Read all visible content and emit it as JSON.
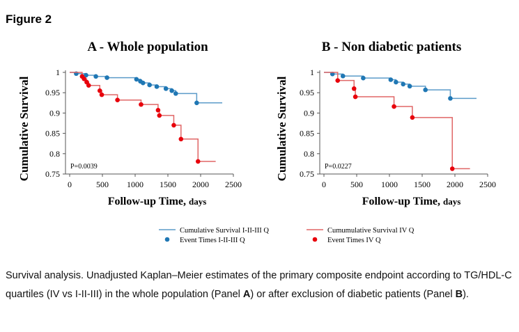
{
  "figure": {
    "heading": "Figure 2",
    "caption_parts": [
      {
        "text": "Survival analysis. Unadjusted Kaplan–Meier estimates of the primary composite endpoint according to TG/HDL-C quartiles (IV vs I-II-III) in the whole population (Panel ",
        "bold": false
      },
      {
        "text": "A",
        "bold": true
      },
      {
        "text": ") or after exclusion of diabetic patients (Panel ",
        "bold": false
      },
      {
        "text": "B",
        "bold": true
      },
      {
        "text": ").",
        "bold": false
      }
    ]
  },
  "legend": {
    "items": [
      {
        "id": "q123-line",
        "label": "Cumulative Survival I-II-III Q",
        "kind": "line",
        "color": "#5b9bc9"
      },
      {
        "id": "q4-line",
        "label": "Cumumulative Survival IV Q",
        "kind": "line",
        "color": "#e06666"
      },
      {
        "id": "q123-dot",
        "label": "Event Times I-II-III Q",
        "kind": "dot",
        "color": "#1f77b4"
      },
      {
        "id": "q4-dot",
        "label": "Event Times IV Q",
        "kind": "dot",
        "color": "#e8000b"
      }
    ]
  },
  "chart_data": [
    {
      "type": "line",
      "subtype": "kaplan-meier-step",
      "panel": "A",
      "title": "A - Whole population",
      "xlabel": "Follow-up Time,",
      "xlabel_unit": "days",
      "ylabel": "Cumulative Survival",
      "xlim": [
        0,
        2500
      ],
      "ylim": [
        0.75,
        1.0
      ],
      "xticks": [
        0,
        500,
        1000,
        1500,
        2000,
        2500
      ],
      "yticks": [
        0.75,
        0.8,
        0.85,
        0.9,
        0.95,
        1
      ],
      "ytick_labels": [
        "0.75",
        "0.8",
        "0.85",
        "0.9",
        "0.95",
        "1"
      ],
      "annotation": "P=0.0039",
      "series": [
        {
          "name": "Cumulative Survival I-II-III Q",
          "color": "#5b9bc9",
          "dot_color": "#1f77b4",
          "steps": [
            [
              0,
              1.0
            ],
            [
              100,
              0.997
            ],
            [
              250,
              0.993
            ],
            [
              400,
              0.99
            ],
            [
              570,
              0.987
            ],
            [
              1020,
              0.983
            ],
            [
              1080,
              0.978
            ],
            [
              1120,
              0.974
            ],
            [
              1220,
              0.969
            ],
            [
              1330,
              0.965
            ],
            [
              1470,
              0.96
            ],
            [
              1560,
              0.955
            ],
            [
              1620,
              0.948
            ],
            [
              1940,
              0.925
            ]
          ],
          "end_x": 2330,
          "events": [
            [
              100,
              0.997
            ],
            [
              250,
              0.993
            ],
            [
              400,
              0.99
            ],
            [
              570,
              0.987
            ],
            [
              1020,
              0.983
            ],
            [
              1080,
              0.978
            ],
            [
              1120,
              0.974
            ],
            [
              1220,
              0.969
            ],
            [
              1330,
              0.965
            ],
            [
              1470,
              0.96
            ],
            [
              1560,
              0.955
            ],
            [
              1620,
              0.948
            ],
            [
              1940,
              0.925
            ]
          ]
        },
        {
          "name": "Cumumulative Survival IV Q",
          "color": "#e06666",
          "dot_color": "#e8000b",
          "steps": [
            [
              0,
              1.0
            ],
            [
              190,
              0.99
            ],
            [
              220,
              0.984
            ],
            [
              260,
              0.976
            ],
            [
              290,
              0.968
            ],
            [
              460,
              0.955
            ],
            [
              490,
              0.945
            ],
            [
              730,
              0.932
            ],
            [
              1090,
              0.921
            ],
            [
              1350,
              0.907
            ],
            [
              1370,
              0.894
            ],
            [
              1590,
              0.87
            ],
            [
              1700,
              0.836
            ],
            [
              1960,
              0.781
            ]
          ],
          "end_x": 2230,
          "events": [
            [
              190,
              0.99
            ],
            [
              220,
              0.984
            ],
            [
              260,
              0.976
            ],
            [
              290,
              0.968
            ],
            [
              460,
              0.955
            ],
            [
              490,
              0.945
            ],
            [
              730,
              0.932
            ],
            [
              1090,
              0.921
            ],
            [
              1350,
              0.907
            ],
            [
              1370,
              0.894
            ],
            [
              1590,
              0.87
            ],
            [
              1700,
              0.836
            ],
            [
              1960,
              0.781
            ]
          ]
        }
      ]
    },
    {
      "type": "line",
      "subtype": "kaplan-meier-step",
      "panel": "B",
      "title": "B - Non diabetic patients",
      "xlabel": "Follow-up Time,",
      "xlabel_unit": "days",
      "ylabel": "Cumulative Survival",
      "xlim": [
        0,
        2500
      ],
      "ylim": [
        0.75,
        1.0
      ],
      "xticks": [
        0,
        500,
        1000,
        1500,
        2000,
        2500
      ],
      "yticks": [
        0.75,
        0.8,
        0.85,
        0.9,
        0.95,
        1
      ],
      "ytick_labels": [
        "0.75",
        "0.8",
        "0.85",
        "0.9",
        "0.95",
        "1"
      ],
      "annotation": "P=0.0227",
      "series": [
        {
          "name": "Cumulative Survival I-II-III Q",
          "color": "#5b9bc9",
          "dot_color": "#1f77b4",
          "steps": [
            [
              0,
              1.0
            ],
            [
              130,
              0.996
            ],
            [
              290,
              0.991
            ],
            [
              600,
              0.986
            ],
            [
              1020,
              0.982
            ],
            [
              1100,
              0.976
            ],
            [
              1210,
              0.971
            ],
            [
              1310,
              0.966
            ],
            [
              1550,
              0.957
            ],
            [
              1930,
              0.936
            ]
          ],
          "end_x": 2330,
          "events": [
            [
              130,
              0.996
            ],
            [
              290,
              0.991
            ],
            [
              600,
              0.986
            ],
            [
              1020,
              0.982
            ],
            [
              1100,
              0.976
            ],
            [
              1210,
              0.971
            ],
            [
              1310,
              0.966
            ],
            [
              1550,
              0.957
            ],
            [
              1930,
              0.936
            ]
          ]
        },
        {
          "name": "Cumumulative Survival IV Q",
          "color": "#e06666",
          "dot_color": "#e8000b",
          "steps": [
            [
              0,
              1.0
            ],
            [
              210,
              0.98
            ],
            [
              460,
              0.96
            ],
            [
              480,
              0.94
            ],
            [
              1070,
              0.916
            ],
            [
              1350,
              0.889
            ],
            [
              1960,
              0.763
            ]
          ],
          "end_x": 2230,
          "events": [
            [
              210,
              0.98
            ],
            [
              460,
              0.96
            ],
            [
              480,
              0.94
            ],
            [
              1070,
              0.916
            ],
            [
              1350,
              0.889
            ],
            [
              1960,
              0.763
            ]
          ]
        }
      ]
    }
  ]
}
